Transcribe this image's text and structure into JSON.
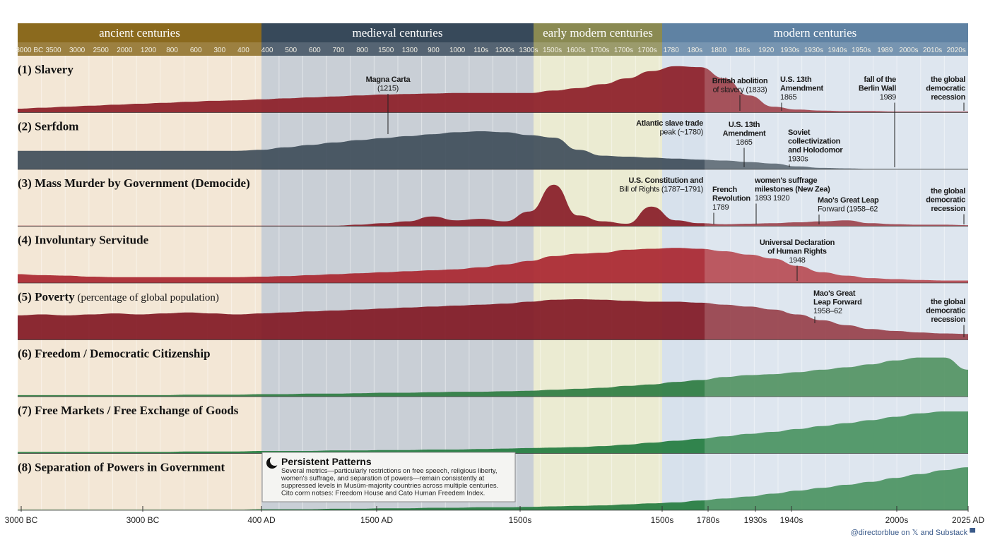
{
  "chart_data": {
    "type": "area",
    "eras": [
      {
        "name": "ancient centuries",
        "color": "#8b6a1e",
        "band": "#f3e7d6"
      },
      {
        "name": "medieval centuries",
        "color": "#37495a",
        "band": "#c9cfd6"
      },
      {
        "name": "early modern centuries",
        "color": "#8a8a52",
        "band": "#ebebd2"
      },
      {
        "name": "modern centuries",
        "color": "#5f82a3",
        "band": "#d7e1ec"
      }
    ],
    "tick_labels": [
      "3000 BC",
      "3500",
      "3000",
      "2500",
      "2000",
      "1200",
      "800",
      "600",
      "300",
      "400",
      "400",
      "500",
      "600",
      "700",
      "800",
      "1500",
      "1300",
      "900",
      "1000",
      "110s",
      "1200s",
      "1300s",
      "1500s",
      "1600s",
      "1700s",
      "1700s",
      "1700s",
      "1780",
      "180s",
      "1800",
      "186s",
      "1920",
      "1930s",
      "1930s",
      "1940s",
      "1950s",
      "1989",
      "2000s",
      "2010s",
      "2020s"
    ],
    "bottom_labels": [
      "3000 BC",
      "3000 BC",
      "400 AD",
      "1500 AD",
      "1500s",
      "1500s",
      "1780s",
      "1930s",
      "1940s",
      "2000s",
      "2025 AD"
    ],
    "series": [
      {
        "name": "(1) Slavery",
        "subtitle": "",
        "color": "#8b1a24",
        "values": [
          0.08,
          0.1,
          0.12,
          0.14,
          0.16,
          0.18,
          0.2,
          0.22,
          0.24,
          0.25,
          0.27,
          0.29,
          0.31,
          0.33,
          0.35,
          0.37,
          0.38,
          0.39,
          0.4,
          0.4,
          0.4,
          0.4,
          0.45,
          0.5,
          0.58,
          0.7,
          0.85,
          0.95,
          0.93,
          0.7,
          0.35,
          0.12,
          0.06,
          0.04,
          0.03,
          0.03,
          0.02,
          0.02,
          0.02,
          0.02
        ]
      },
      {
        "name": "(2) Serfdom",
        "subtitle": "",
        "color": "#3c4a58",
        "values": [
          0.38,
          0.38,
          0.38,
          0.38,
          0.38,
          0.38,
          0.38,
          0.38,
          0.38,
          0.38,
          0.4,
          0.45,
          0.5,
          0.55,
          0.6,
          0.64,
          0.68,
          0.72,
          0.76,
          0.78,
          0.76,
          0.7,
          0.65,
          0.4,
          0.28,
          0.26,
          0.24,
          0.22,
          0.2,
          0.18,
          0.15,
          0.12,
          0.06,
          0.03,
          0.02,
          0.01,
          0.01,
          0.01,
          0.01,
          0.01
        ]
      },
      {
        "name": "(3) Mass Murder by Government (Democide)",
        "subtitle": "",
        "color": "#861824",
        "values": [
          0.01,
          0.01,
          0.01,
          0.01,
          0.01,
          0.01,
          0.01,
          0.01,
          0.01,
          0.01,
          0.01,
          0.01,
          0.01,
          0.01,
          0.03,
          0.06,
          0.1,
          0.2,
          0.12,
          0.15,
          0.1,
          0.3,
          0.85,
          0.22,
          0.1,
          0.05,
          0.4,
          0.12,
          0.06,
          0.04,
          0.05,
          0.06,
          0.08,
          0.1,
          0.12,
          0.06,
          0.04,
          0.03,
          0.03,
          0.02
        ]
      },
      {
        "name": "(4) Involuntary Servitude",
        "subtitle": "",
        "color": "#a8222c",
        "values": [
          0.18,
          0.16,
          0.15,
          0.13,
          0.12,
          0.12,
          0.12,
          0.12,
          0.12,
          0.12,
          0.13,
          0.14,
          0.16,
          0.18,
          0.2,
          0.22,
          0.24,
          0.26,
          0.28,
          0.32,
          0.38,
          0.45,
          0.55,
          0.6,
          0.62,
          0.68,
          0.7,
          0.72,
          0.7,
          0.65,
          0.58,
          0.5,
          0.35,
          0.22,
          0.15,
          0.1,
          0.08,
          0.06,
          0.05,
          0.05
        ]
      },
      {
        "name": "(5) Poverty",
        "subtitle": "(percentage of global population)",
        "color": "#7f1420",
        "values": [
          0.5,
          0.52,
          0.5,
          0.52,
          0.54,
          0.52,
          0.54,
          0.56,
          0.54,
          0.52,
          0.54,
          0.56,
          0.58,
          0.6,
          0.62,
          0.64,
          0.66,
          0.68,
          0.7,
          0.72,
          0.74,
          0.78,
          0.82,
          0.83,
          0.82,
          0.8,
          0.78,
          0.78,
          0.76,
          0.72,
          0.68,
          0.62,
          0.52,
          0.4,
          0.3,
          0.22,
          0.18,
          0.15,
          0.13,
          0.12
        ]
      },
      {
        "name": "(6) Freedom / Democratic Citizenship",
        "subtitle": "",
        "color": "#2a7a3e",
        "values": [
          0.03,
          0.03,
          0.03,
          0.03,
          0.03,
          0.03,
          0.03,
          0.04,
          0.04,
          0.04,
          0.05,
          0.05,
          0.06,
          0.06,
          0.07,
          0.08,
          0.08,
          0.09,
          0.1,
          0.1,
          0.11,
          0.12,
          0.14,
          0.16,
          0.18,
          0.22,
          0.25,
          0.3,
          0.34,
          0.4,
          0.44,
          0.46,
          0.5,
          0.55,
          0.6,
          0.66,
          0.74,
          0.8,
          0.8,
          0.55
        ]
      },
      {
        "name": "(7) Free Markets / Free Exchange of Goods",
        "subtitle": "",
        "color": "#1f7a3c",
        "values": [
          0.03,
          0.03,
          0.03,
          0.03,
          0.03,
          0.03,
          0.03,
          0.04,
          0.04,
          0.04,
          0.05,
          0.05,
          0.05,
          0.06,
          0.06,
          0.07,
          0.07,
          0.08,
          0.08,
          0.09,
          0.1,
          0.11,
          0.12,
          0.13,
          0.15,
          0.18,
          0.22,
          0.26,
          0.3,
          0.35,
          0.4,
          0.44,
          0.5,
          0.56,
          0.62,
          0.68,
          0.75,
          0.82,
          0.86,
          0.86
        ]
      },
      {
        "name": "(8) Separation of Powers in Government",
        "subtitle": "",
        "color": "#217a3c",
        "values": [
          0.01,
          0.01,
          0.01,
          0.01,
          0.01,
          0.01,
          0.01,
          0.01,
          0.01,
          0.01,
          0.02,
          0.02,
          0.02,
          0.03,
          0.03,
          0.04,
          0.04,
          0.05,
          0.05,
          0.06,
          0.06,
          0.07,
          0.08,
          0.09,
          0.1,
          0.12,
          0.14,
          0.16,
          0.2,
          0.24,
          0.28,
          0.34,
          0.4,
          0.46,
          0.52,
          0.58,
          0.66,
          0.74,
          0.82,
          0.88
        ]
      }
    ],
    "annotations": [
      {
        "row": 0,
        "lines": [
          "Magna Carta",
          "(1215)"
        ]
      },
      {
        "row": 0,
        "lines": [
          "British abolition",
          "of slavery (1833)"
        ]
      },
      {
        "row": 0,
        "lines": [
          "U.S. 13th",
          "Amendment",
          "1865"
        ]
      },
      {
        "row": 0,
        "lines": [
          "fall of the",
          "Berlin Wall",
          "1989"
        ]
      },
      {
        "row": 0,
        "lines": [
          "the global",
          "democratic",
          "recession"
        ]
      },
      {
        "row": 1,
        "lines": [
          "Atlantic slave trade",
          "peak (~1780)"
        ]
      },
      {
        "row": 1,
        "lines": [
          "U.S. 13th",
          "Amendment",
          "1865"
        ]
      },
      {
        "row": 1,
        "lines": [
          "Soviet",
          "collectivization",
          "and Holodomor",
          "1930s"
        ]
      },
      {
        "row": 2,
        "lines": [
          "U.S. Constitution and",
          "Bill of Rights (1787–1791)"
        ]
      },
      {
        "row": 2,
        "lines": [
          "French",
          "Revolution",
          "1789"
        ]
      },
      {
        "row": 2,
        "lines": [
          "women's suffrage",
          "milestones (New Zea)",
          "1893        1920"
        ]
      },
      {
        "row": 2,
        "lines": [
          "Mao's Great Leap",
          "Forward (1958–62"
        ]
      },
      {
        "row": 2,
        "lines": [
          "the global",
          "democratic",
          "recession"
        ]
      },
      {
        "row": 3,
        "lines": [
          "Universal Declaration",
          "of Human Rights",
          "1948"
        ]
      },
      {
        "row": 4,
        "lines": [
          "Mao's Great",
          "Leap Forward",
          "1958–62"
        ]
      },
      {
        "row": 4,
        "lines": [
          "the global",
          "democratic",
          "recession"
        ]
      }
    ],
    "note": {
      "title": "Persistent Patterns",
      "lines": [
        "Several metrics—particularly restrictions on free speech, religious liberty,",
        "women's suffrage, and separation of powers—remain consistently at",
        "suppressed levels in Musüm-majority countries across multiple centuries.",
        "Cito corm notses: Freedom House and Cato Human Freedem Index."
      ]
    },
    "credit": "@directorblue on 𝕏 and Substack ▀"
  }
}
